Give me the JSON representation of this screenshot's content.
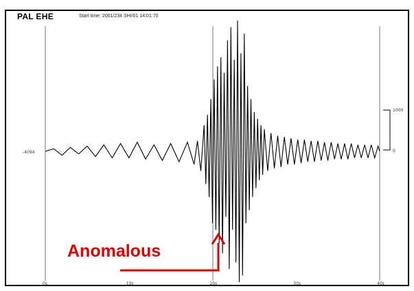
{
  "header": {
    "station": "PAL EHE",
    "start_time": "Start time: 2001/234 SHI/01 14:01:70"
  },
  "annotation": {
    "label": "Anomalous",
    "color": "#e00000"
  },
  "chart_data": {
    "type": "line",
    "title": "PAL EHE",
    "xlabel": "",
    "ylabel": "",
    "x_ticks": [
      "0s",
      "10s",
      "20s",
      "30s",
      "40s"
    ],
    "xlim": [
      0,
      40
    ],
    "ylim": [
      -1,
      1
    ],
    "y_tick_left": "-4094",
    "scale_bar": {
      "top_label": "1000",
      "bottom_label": "0"
    },
    "grid": "vertical lines at 0s, 20s, 40s",
    "series": [
      {
        "color": "#000000",
        "x": [
          0.0,
          1.0,
          2.0,
          3.0,
          4.0,
          5.0,
          6.0,
          7.0,
          8.0,
          9.0,
          10.0,
          11.0,
          12.0,
          13.0,
          14.0,
          15.0,
          16.0,
          17.0,
          17.8,
          18.2,
          18.6,
          19.0,
          19.2,
          19.4,
          19.6,
          19.8,
          20.0,
          20.2,
          20.4,
          20.6,
          20.8,
          21.0,
          21.2,
          21.4,
          21.6,
          21.8,
          22.0,
          22.2,
          22.4,
          22.6,
          22.8,
          23.0,
          23.2,
          23.4,
          23.6,
          23.8,
          24.0,
          24.2,
          24.4,
          24.6,
          24.8,
          25.0,
          25.2,
          25.4,
          25.6,
          25.8,
          26.0,
          26.2,
          26.6,
          27.0,
          27.4,
          27.8,
          28.2,
          28.6,
          29.0,
          29.4,
          29.8,
          30.2,
          30.6,
          31.0,
          31.4,
          31.8,
          32.2,
          32.6,
          33.0,
          33.4,
          33.8,
          34.2,
          34.6,
          35.0,
          35.4,
          35.8,
          36.2,
          36.6,
          37.0,
          37.4,
          37.8,
          38.2,
          38.6,
          39.0,
          39.4,
          39.8,
          40.0
        ],
        "y": [
          0.0,
          0.02,
          -0.03,
          0.03,
          -0.02,
          0.04,
          -0.04,
          0.05,
          -0.05,
          0.06,
          -0.05,
          0.07,
          -0.06,
          0.05,
          -0.07,
          0.06,
          -0.08,
          0.07,
          -0.1,
          0.08,
          -0.15,
          0.2,
          -0.25,
          0.28,
          -0.35,
          0.4,
          -0.55,
          0.55,
          -0.6,
          0.65,
          -0.7,
          0.72,
          -0.78,
          0.6,
          -0.5,
          0.85,
          -0.9,
          0.95,
          -0.6,
          0.7,
          -0.85,
          1.0,
          -1.0,
          0.75,
          -0.95,
          0.9,
          -0.55,
          0.5,
          -0.45,
          0.4,
          -0.35,
          0.3,
          -0.28,
          0.25,
          -0.22,
          0.2,
          -0.18,
          0.17,
          -0.15,
          0.14,
          -0.13,
          0.12,
          -0.12,
          0.11,
          -0.1,
          0.1,
          -0.1,
          0.09,
          -0.09,
          0.09,
          -0.08,
          0.08,
          -0.08,
          0.08,
          -0.07,
          0.07,
          -0.07,
          0.07,
          -0.06,
          0.06,
          -0.06,
          0.06,
          -0.06,
          0.06,
          -0.05,
          0.05,
          -0.05,
          0.05,
          -0.05,
          0.05,
          -0.05,
          0.04,
          0.0
        ]
      }
    ]
  }
}
